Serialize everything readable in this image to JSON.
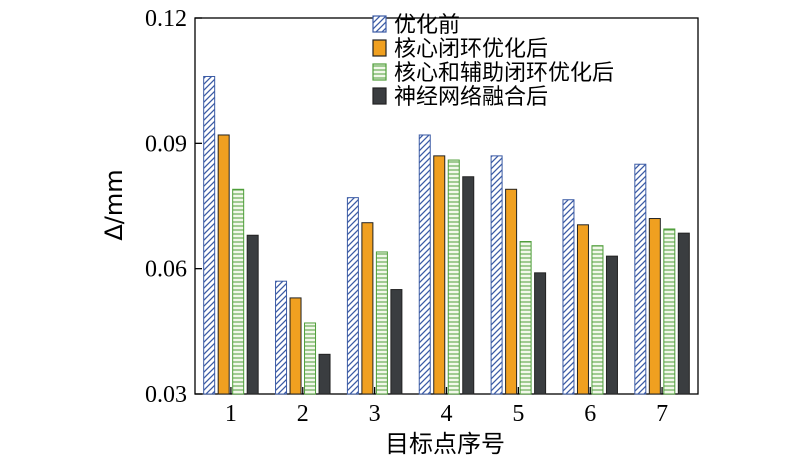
{
  "chart_data": {
    "type": "bar",
    "xlabel": "目标点序号",
    "ylabel": "Δ/mm",
    "ylim": [
      0.03,
      0.12
    ],
    "yticks": [
      "0.03",
      "0.06",
      "0.09",
      "0.12"
    ],
    "categories": [
      "1",
      "2",
      "3",
      "4",
      "5",
      "6",
      "7"
    ],
    "grid": false,
    "legend_position": "top-right",
    "series": [
      {
        "name": "优化前",
        "values": [
          0.106,
          0.057,
          0.077,
          0.092,
          0.087,
          0.0765,
          0.085
        ],
        "color": "#3b5ba5",
        "pattern": "diagonal-hatch"
      },
      {
        "name": "核心闭环优化后",
        "values": [
          0.092,
          0.053,
          0.071,
          0.087,
          0.079,
          0.0705,
          0.072
        ],
        "color": "#f0a020",
        "pattern": "solid"
      },
      {
        "name": "核心和辅助闭环优化后",
        "values": [
          0.079,
          0.047,
          0.064,
          0.086,
          0.0665,
          0.0655,
          0.0695
        ],
        "color": "#4f9e3a",
        "pattern": "horizontal-lines"
      },
      {
        "name": "神经网络融合后",
        "values": [
          0.068,
          0.0395,
          0.055,
          0.082,
          0.059,
          0.063,
          0.0685
        ],
        "color": "#3a3d40",
        "pattern": "solid"
      }
    ]
  }
}
